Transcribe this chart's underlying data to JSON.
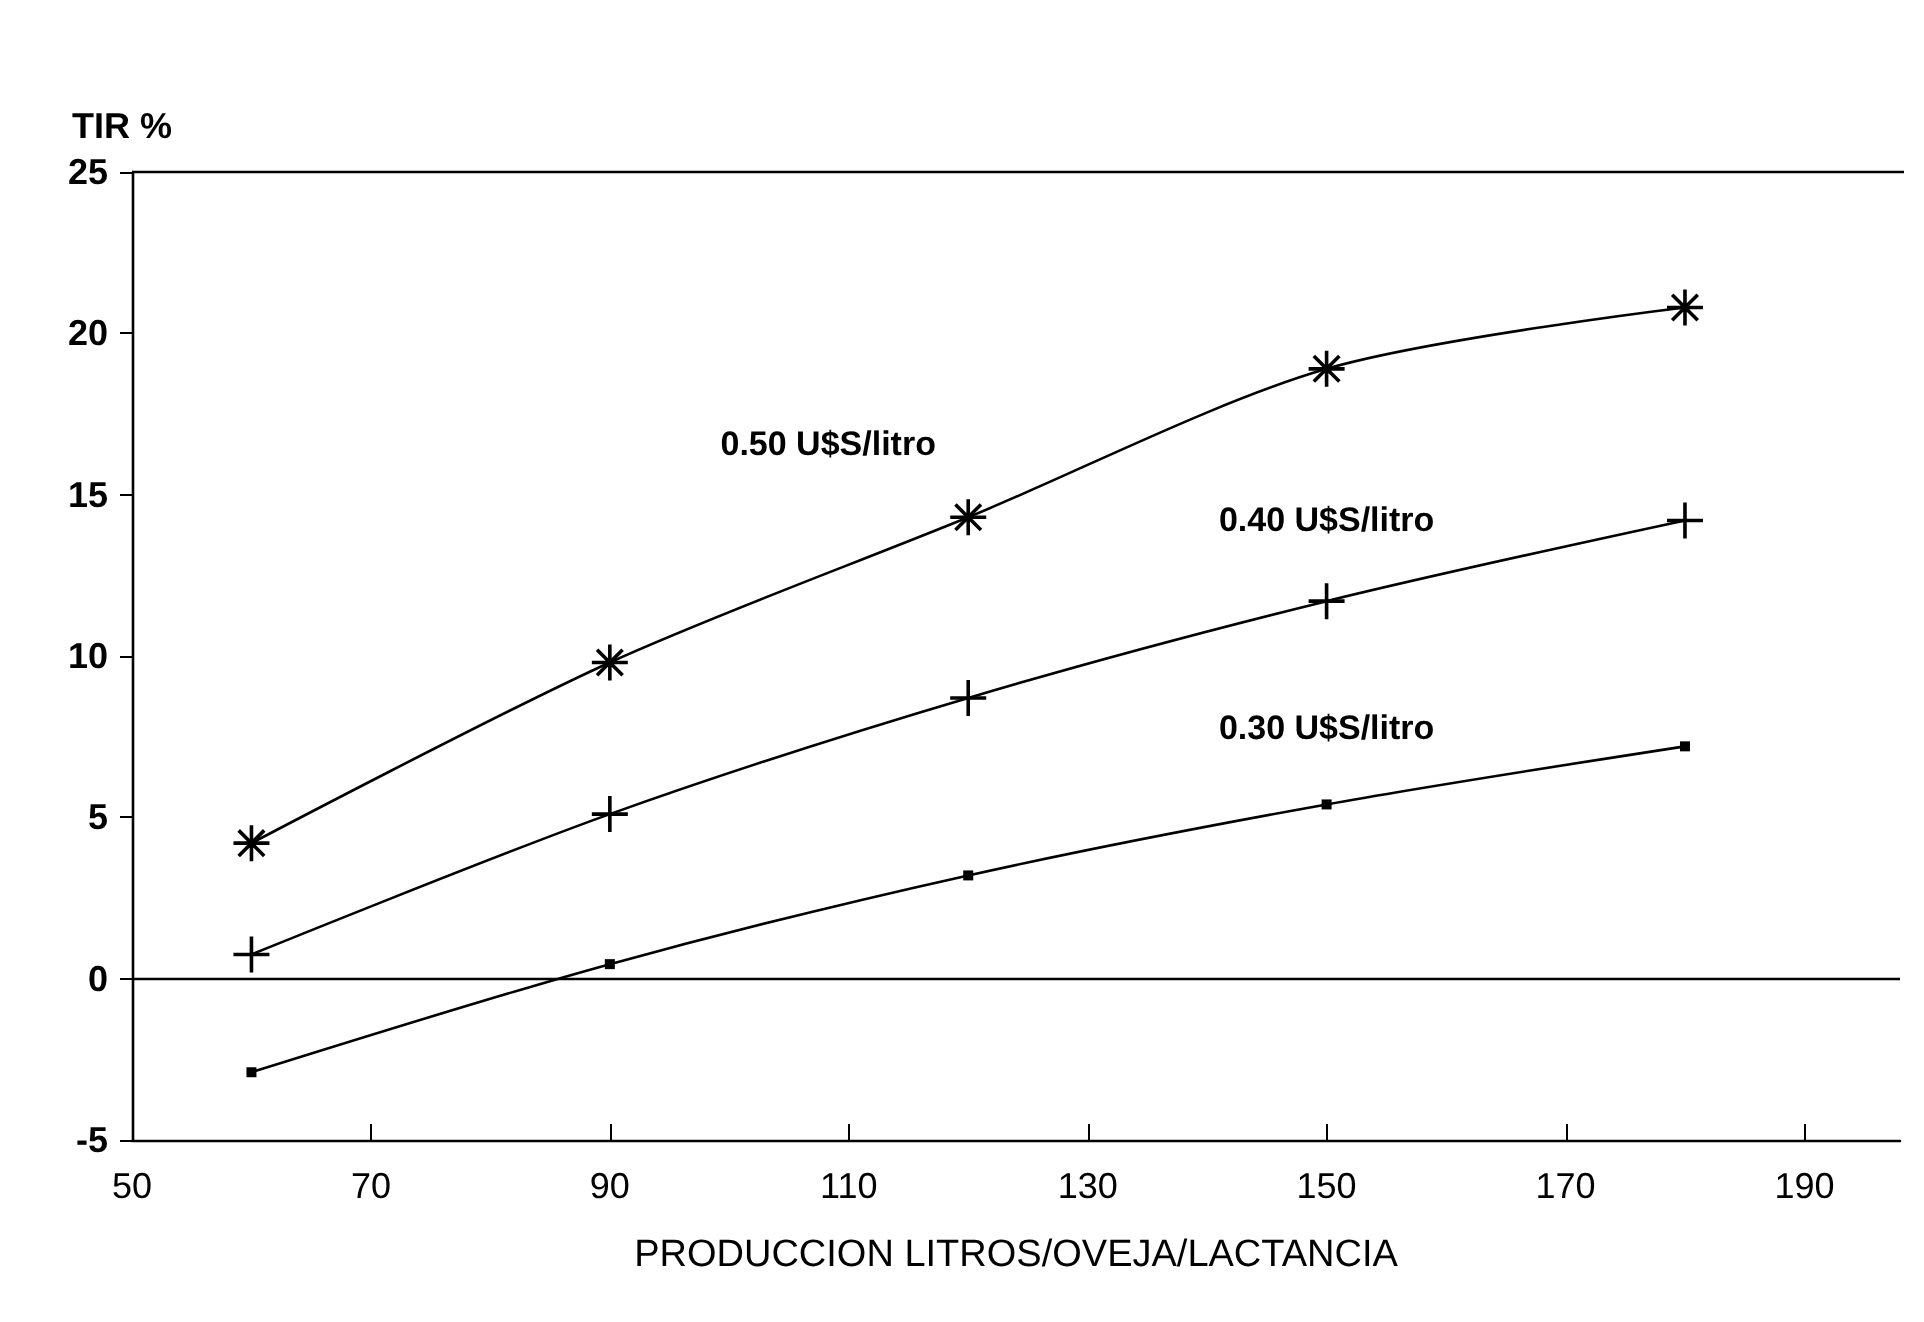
{
  "chart_data": {
    "type": "line",
    "xlabel": "PRODUCCION LITROS/OVEJA/LACTANCIA",
    "ylabel": "TIR %",
    "xlim": [
      50,
      198
    ],
    "xticks": [
      50,
      70,
      90,
      110,
      130,
      150,
      170,
      190
    ],
    "ylim": [
      -5,
      25
    ],
    "yticks": [
      -5,
      0,
      5,
      10,
      15,
      20,
      25
    ],
    "grid": false,
    "legend": false,
    "line_style": "solid",
    "x": [
      60,
      90,
      120,
      150,
      180
    ],
    "series": [
      {
        "name": "0.50 U$S/litro",
        "color": "#000000",
        "marker": "star",
        "values": [
          4.2,
          9.8,
          14.3,
          18.9,
          20.8
        ]
      },
      {
        "name": "0.40 U$S/litro",
        "color": "#000000",
        "marker": "cross",
        "values": [
          0.75,
          5.1,
          8.7,
          11.7,
          14.2
        ]
      },
      {
        "name": "0.30 U$S/litro",
        "color": "#000000",
        "marker": "square",
        "values": [
          -2.9,
          0.45,
          3.2,
          5.4,
          7.2
        ]
      }
    ],
    "ref_lines": [
      {
        "axis": "y",
        "value": 0,
        "label": null,
        "color": "#000000"
      }
    ]
  }
}
